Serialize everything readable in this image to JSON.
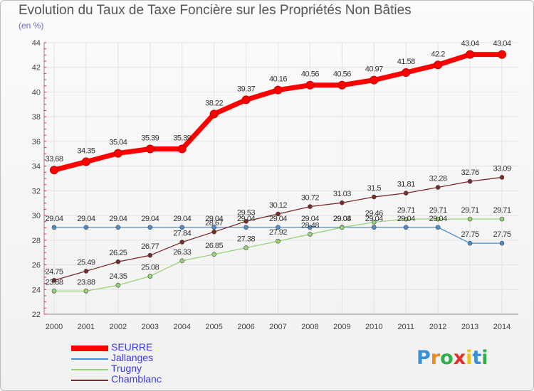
{
  "header": {
    "title": "Evolution du Taux de Taxe Foncière sur les Propriétés Non Bâties",
    "subtitle": "(en %)"
  },
  "logo": {
    "text": "Proxiti"
  },
  "chart_data": {
    "type": "line",
    "title": "Evolution du Taux de Taxe Foncière sur les Propriétés Non Bâties",
    "ylabel": "(en %)",
    "xlabel": "",
    "x": [
      2000,
      2001,
      2002,
      2003,
      2004,
      2005,
      2006,
      2007,
      2008,
      2009,
      2010,
      2011,
      2012,
      2013,
      2014
    ],
    "ylim": [
      22,
      44
    ],
    "yticks": [
      22,
      24,
      26,
      28,
      30,
      32,
      34,
      36,
      38,
      40,
      42,
      44
    ],
    "grid": true,
    "legend_position": "bottom-left",
    "series": [
      {
        "name": "SEURRE",
        "color": "#ff0000",
        "values": [
          33.68,
          34.35,
          35.04,
          35.39,
          35.39,
          38.22,
          39.37,
          40.16,
          40.56,
          40.56,
          40.97,
          41.58,
          42.2,
          43.04,
          43.04
        ]
      },
      {
        "name": "Jallanges",
        "color": "#4a8ed0",
        "values": [
          29.04,
          29.04,
          29.04,
          29.04,
          29.04,
          29.04,
          29.04,
          29.04,
          29.04,
          29.04,
          29.04,
          29.04,
          29.04,
          27.75,
          27.75
        ]
      },
      {
        "name": "Trugny",
        "color": "#99d277",
        "values": [
          23.88,
          23.88,
          24.35,
          25.08,
          26.33,
          26.85,
          27.38,
          27.92,
          28.48,
          29.03,
          29.46,
          29.71,
          29.71,
          29.71,
          29.71
        ]
      },
      {
        "name": "Chamblanc",
        "color": "#7a2a2a",
        "values": [
          24.75,
          25.49,
          26.25,
          26.77,
          27.84,
          28.67,
          29.53,
          30.12,
          30.72,
          31.03,
          31.5,
          31.81,
          32.28,
          32.76,
          33.09
        ]
      }
    ]
  }
}
